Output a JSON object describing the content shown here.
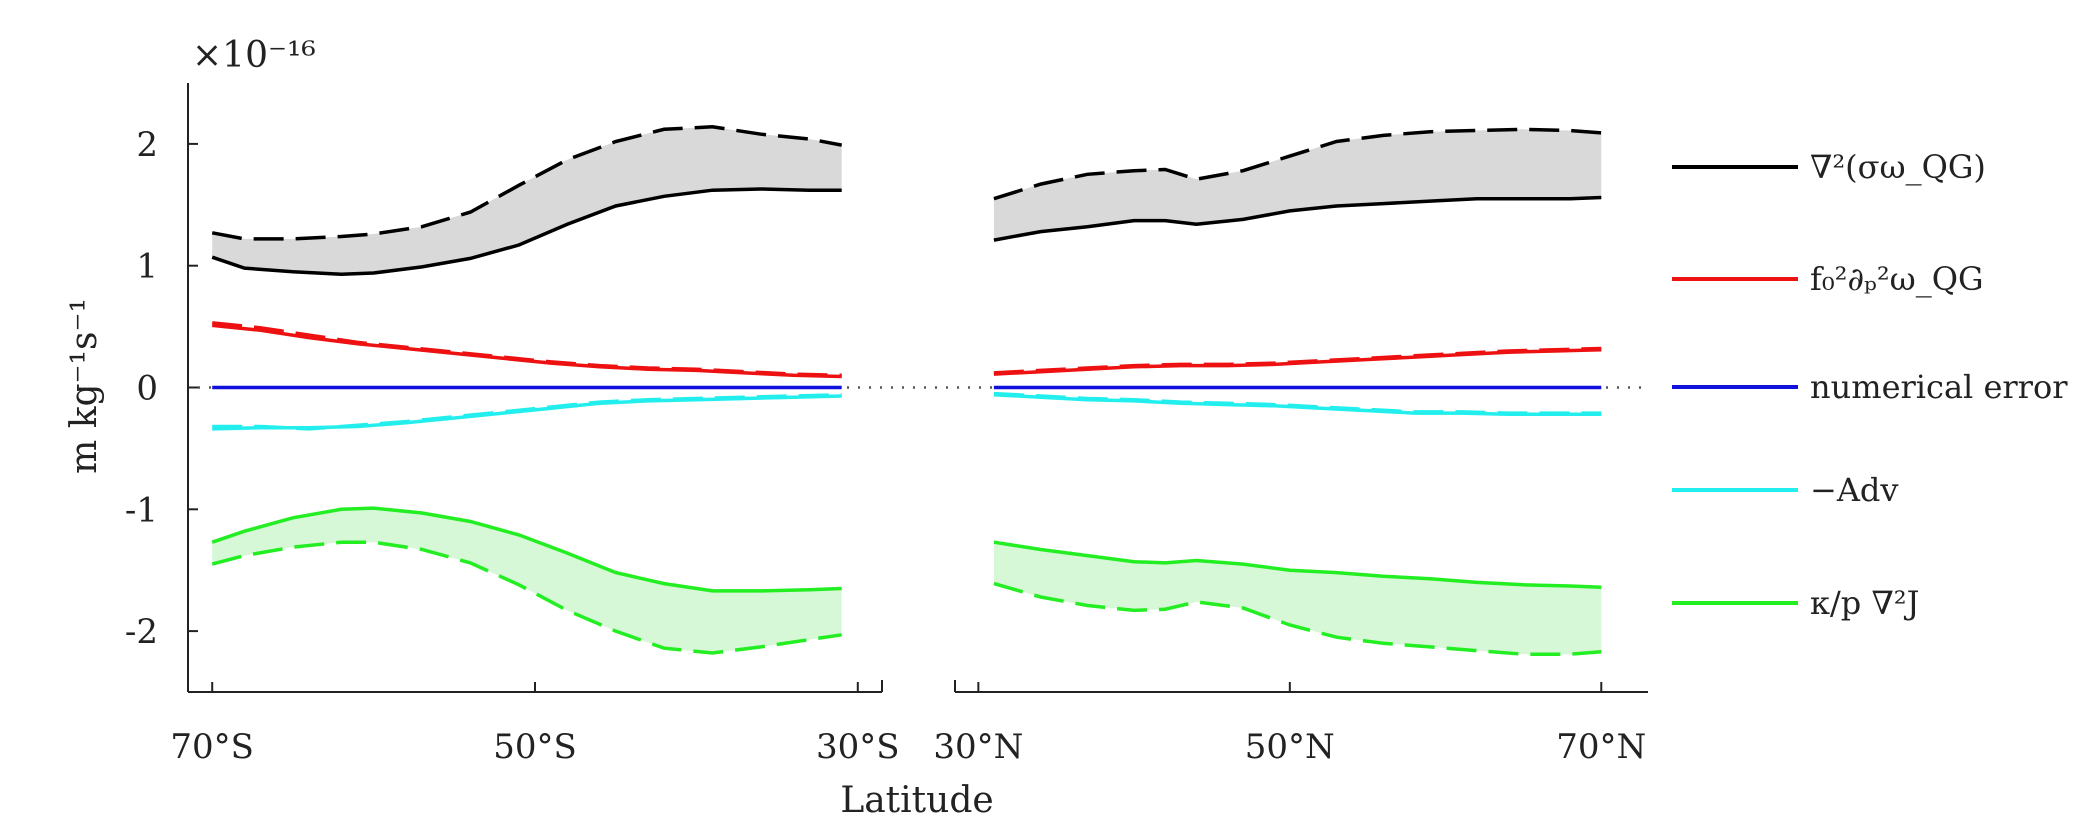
{
  "chart_data": {
    "type": "line",
    "xlabel": "Latitude",
    "ylabel": "m kg⁻¹s⁻¹",
    "y_exponent": "×10⁻¹⁶",
    "ylim": [
      -2.5,
      2.5
    ],
    "yticks": [
      -2,
      -1,
      0,
      1,
      2
    ],
    "ytick_labels": [
      "-2",
      "-1",
      "0",
      "1",
      "2"
    ],
    "zero_line_style": "dotted",
    "grid": false,
    "legend_position": "right",
    "panels": [
      {
        "name": "south",
        "xlim": [
          -71.5,
          -28.5
        ],
        "xticks": [
          -70,
          -50,
          -30
        ],
        "xtick_labels": [
          "70°S",
          "50°S",
          "30°S"
        ]
      },
      {
        "name": "north",
        "xlim": [
          28.5,
          73
        ],
        "xticks": [
          30,
          50,
          70
        ],
        "xtick_labels": [
          "30°N",
          "50°N",
          "70°N"
        ]
      }
    ],
    "series": [
      {
        "key": "laplacian_sigma_omega",
        "name": "∇²(σω_QG)",
        "color": "#000000",
        "band_fill": "#d9d9d9",
        "segments": [
          {
            "panel": "south",
            "x": [
              -70,
              -68,
              -65,
              -62,
              -60,
              -57,
              -54,
              -51,
              -48,
              -45,
              -42,
              -39,
              -36,
              -33,
              -31
            ],
            "solid": [
              1.07,
              0.98,
              0.95,
              0.93,
              0.94,
              0.99,
              1.06,
              1.17,
              1.34,
              1.49,
              1.57,
              1.62,
              1.63,
              1.62,
              1.62
            ],
            "dashed": [
              1.27,
              1.22,
              1.22,
              1.24,
              1.26,
              1.32,
              1.44,
              1.66,
              1.87,
              2.02,
              2.12,
              2.14,
              2.08,
              2.04,
              1.99
            ]
          },
          {
            "panel": "north",
            "x": [
              31,
              34,
              37,
              40,
              42,
              44,
              47,
              50,
              53,
              56,
              59,
              62,
              65,
              68,
              70
            ],
            "solid": [
              1.21,
              1.28,
              1.32,
              1.37,
              1.37,
              1.34,
              1.38,
              1.45,
              1.49,
              1.51,
              1.53,
              1.55,
              1.55,
              1.55,
              1.56
            ],
            "dashed": [
              1.55,
              1.67,
              1.75,
              1.78,
              1.79,
              1.71,
              1.78,
              1.9,
              2.02,
              2.07,
              2.1,
              2.11,
              2.12,
              2.11,
              2.09
            ]
          }
        ]
      },
      {
        "key": "f0_dp_omega",
        "name": "f₀²∂ₚ²ω_QG",
        "color": "#ee1111",
        "segments": [
          {
            "panel": "south",
            "x": [
              -70,
              -67,
              -64,
              -61,
              -58,
              -55,
              -52,
              -49,
              -46,
              -43,
              -40,
              -37,
              -34,
              -31
            ],
            "solid": [
              0.51,
              0.47,
              0.41,
              0.36,
              0.32,
              0.28,
              0.24,
              0.2,
              0.17,
              0.15,
              0.14,
              0.12,
              0.1,
              0.09
            ],
            "dashed": [
              0.53,
              0.49,
              0.43,
              0.37,
              0.33,
              0.29,
              0.25,
              0.21,
              0.18,
              0.16,
              0.15,
              0.13,
              0.11,
              0.1
            ]
          },
          {
            "panel": "north",
            "x": [
              31,
              34,
              37,
              40,
              43,
              46,
              49,
              52,
              55,
              58,
              61,
              64,
              67,
              70
            ],
            "solid": [
              0.11,
              0.13,
              0.15,
              0.17,
              0.18,
              0.18,
              0.19,
              0.21,
              0.23,
              0.25,
              0.27,
              0.29,
              0.3,
              0.31
            ],
            "dashed": [
              0.12,
              0.14,
              0.16,
              0.18,
              0.19,
              0.19,
              0.2,
              0.22,
              0.24,
              0.26,
              0.28,
              0.3,
              0.31,
              0.32
            ]
          }
        ]
      },
      {
        "key": "numerical_error",
        "name": "numerical error",
        "color": "#1111dd",
        "segments": [
          {
            "panel": "south",
            "x": [
              -70,
              -31
            ],
            "solid": [
              0.0,
              0.0
            ]
          },
          {
            "panel": "north",
            "x": [
              31,
              70
            ],
            "solid": [
              0.0,
              0.0
            ]
          }
        ]
      },
      {
        "key": "neg_adv",
        "name": "−Adv",
        "color": "#22eeee",
        "segments": [
          {
            "panel": "south",
            "x": [
              -70,
              -67,
              -64,
              -61,
              -58,
              -55,
              -52,
              -49,
              -46,
              -43,
              -40,
              -37,
              -34,
              -31
            ],
            "solid": [
              -0.34,
              -0.33,
              -0.33,
              -0.32,
              -0.29,
              -0.25,
              -0.21,
              -0.17,
              -0.13,
              -0.11,
              -0.1,
              -0.09,
              -0.08,
              -0.07
            ],
            "dashed": [
              -0.32,
              -0.32,
              -0.34,
              -0.31,
              -0.28,
              -0.24,
              -0.2,
              -0.16,
              -0.12,
              -0.1,
              -0.09,
              -0.08,
              -0.07,
              -0.06
            ]
          },
          {
            "panel": "north",
            "x": [
              31,
              34,
              37,
              40,
              43,
              46,
              49,
              52,
              55,
              58,
              61,
              64,
              67,
              70
            ],
            "solid": [
              -0.06,
              -0.08,
              -0.1,
              -0.11,
              -0.13,
              -0.14,
              -0.15,
              -0.17,
              -0.19,
              -0.21,
              -0.21,
              -0.22,
              -0.22,
              -0.22
            ],
            "dashed": [
              -0.05,
              -0.07,
              -0.09,
              -0.1,
              -0.12,
              -0.13,
              -0.14,
              -0.16,
              -0.18,
              -0.2,
              -0.2,
              -0.21,
              -0.21,
              -0.21
            ]
          }
        ]
      },
      {
        "key": "kappa_laplacian_J",
        "name": "κ/p ∇²J",
        "color": "#22ee22",
        "band_fill": "#d6f8d6",
        "segments": [
          {
            "panel": "south",
            "x": [
              -70,
              -68,
              -65,
              -62,
              -60,
              -57,
              -54,
              -51,
              -48,
              -45,
              -42,
              -39,
              -36,
              -33,
              -31
            ],
            "solid": [
              -1.27,
              -1.18,
              -1.07,
              -1.0,
              -0.99,
              -1.03,
              -1.1,
              -1.21,
              -1.36,
              -1.52,
              -1.61,
              -1.67,
              -1.67,
              -1.66,
              -1.65
            ],
            "dashed": [
              -1.45,
              -1.38,
              -1.31,
              -1.27,
              -1.27,
              -1.33,
              -1.44,
              -1.62,
              -1.83,
              -2.0,
              -2.14,
              -2.18,
              -2.13,
              -2.07,
              -2.03
            ]
          },
          {
            "panel": "north",
            "x": [
              31,
              34,
              37,
              40,
              42,
              44,
              47,
              50,
              53,
              56,
              59,
              62,
              65,
              68,
              70
            ],
            "solid": [
              -1.27,
              -1.33,
              -1.38,
              -1.43,
              -1.44,
              -1.42,
              -1.45,
              -1.5,
              -1.52,
              -1.55,
              -1.57,
              -1.6,
              -1.62,
              -1.63,
              -1.64
            ],
            "dashed": [
              -1.61,
              -1.72,
              -1.79,
              -1.83,
              -1.82,
              -1.76,
              -1.81,
              -1.95,
              -2.05,
              -2.1,
              -2.13,
              -2.16,
              -2.19,
              -2.19,
              -2.17
            ]
          }
        ]
      }
    ]
  }
}
